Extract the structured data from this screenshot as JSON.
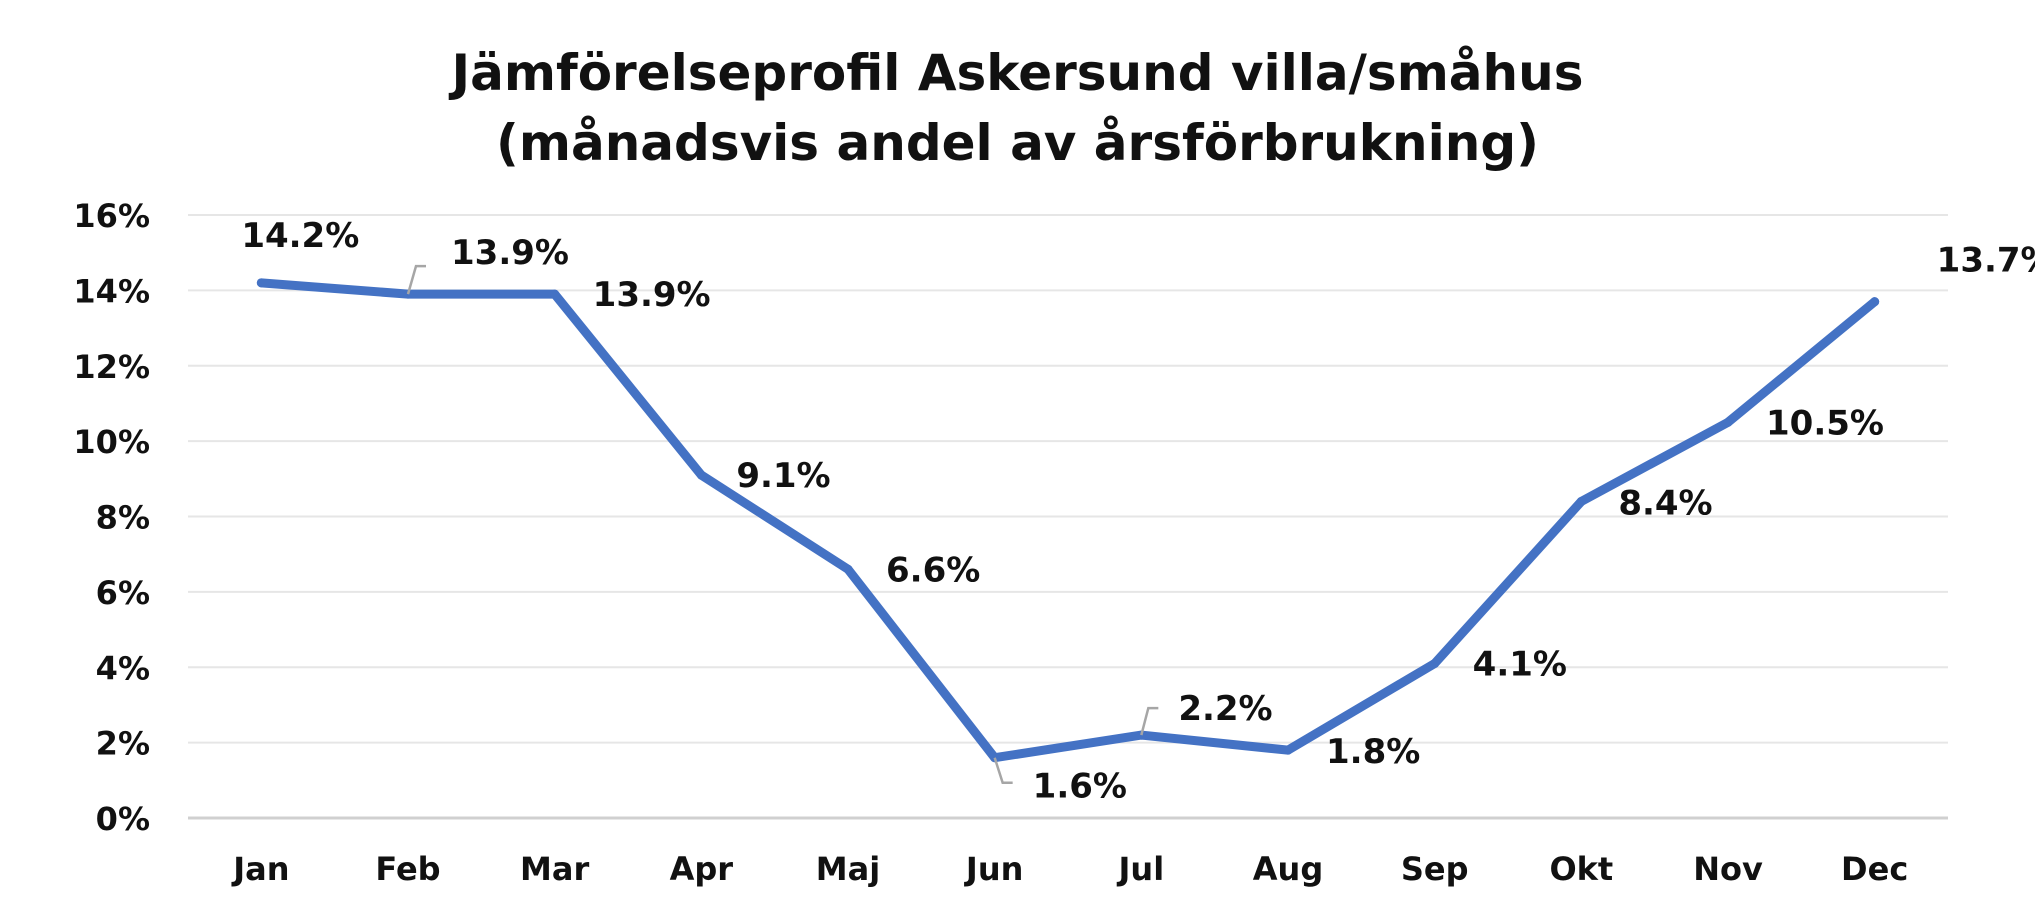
{
  "chart_data": {
    "type": "line",
    "title": "Jämförelseprofil Askersund villa/småhus",
    "subtitle": "(månadsvis andel av årsförbrukning)",
    "categories": [
      "Jan",
      "Feb",
      "Mar",
      "Apr",
      "Maj",
      "Jun",
      "Jul",
      "Aug",
      "Sep",
      "Okt",
      "Nov",
      "Dec"
    ],
    "series": [
      {
        "values": [
          14.2,
          13.9,
          13.9,
          9.1,
          6.6,
          1.6,
          2.2,
          1.8,
          4.1,
          8.4,
          10.5,
          13.7
        ],
        "data_labels": [
          "14.2%",
          "13.9%",
          "13.9%",
          "9.1%",
          "6.6%",
          "1.6%",
          "2.2%",
          "1.8%",
          "4.1%",
          "8.4%",
          "10.5%",
          "13.7%"
        ],
        "color": "#4472C4"
      }
    ],
    "y_ticks": [
      "0%",
      "2%",
      "4%",
      "6%",
      "8%",
      "10%",
      "12%",
      "14%",
      "16%"
    ],
    "ylim": [
      0,
      16
    ],
    "xlabel": "",
    "ylabel": "",
    "grid": true,
    "legend": "none"
  },
  "colors": {
    "line": "#4472C4",
    "grid": "#e6e6e6",
    "axis": "#d0d0d0",
    "leader": "#a6a6a6",
    "text": "#111111"
  }
}
